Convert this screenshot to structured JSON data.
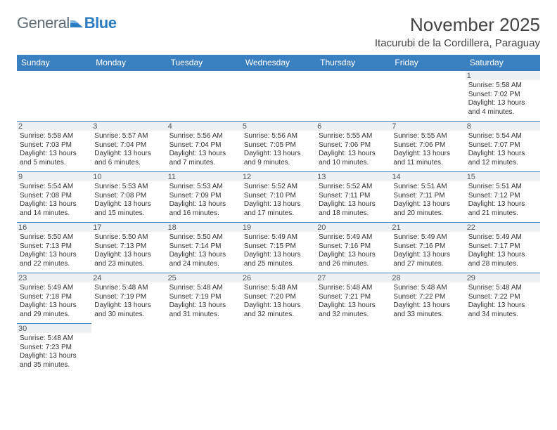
{
  "brand": {
    "part1": "General",
    "part2": "Blue"
  },
  "title": "November 2025",
  "location": "Itacurubi de la Cordillera, Paraguay",
  "colors": {
    "header_bg": "#3a7fbf",
    "header_fg": "#ffffff",
    "rule": "#3a7fbf",
    "daynum_bg": "#eef1f3"
  },
  "daysOfWeek": [
    "Sunday",
    "Monday",
    "Tuesday",
    "Wednesday",
    "Thursday",
    "Friday",
    "Saturday"
  ],
  "weeks": [
    [
      {
        "empty": true
      },
      {
        "empty": true
      },
      {
        "empty": true
      },
      {
        "empty": true
      },
      {
        "empty": true
      },
      {
        "empty": true
      },
      {
        "day": 1,
        "sunrise": "5:58 AM",
        "sunset": "7:02 PM",
        "daylight": "13 hours and 4 minutes."
      }
    ],
    [
      {
        "day": 2,
        "sunrise": "5:58 AM",
        "sunset": "7:03 PM",
        "daylight": "13 hours and 5 minutes."
      },
      {
        "day": 3,
        "sunrise": "5:57 AM",
        "sunset": "7:04 PM",
        "daylight": "13 hours and 6 minutes."
      },
      {
        "day": 4,
        "sunrise": "5:56 AM",
        "sunset": "7:04 PM",
        "daylight": "13 hours and 7 minutes."
      },
      {
        "day": 5,
        "sunrise": "5:56 AM",
        "sunset": "7:05 PM",
        "daylight": "13 hours and 9 minutes."
      },
      {
        "day": 6,
        "sunrise": "5:55 AM",
        "sunset": "7:06 PM",
        "daylight": "13 hours and 10 minutes."
      },
      {
        "day": 7,
        "sunrise": "5:55 AM",
        "sunset": "7:06 PM",
        "daylight": "13 hours and 11 minutes."
      },
      {
        "day": 8,
        "sunrise": "5:54 AM",
        "sunset": "7:07 PM",
        "daylight": "13 hours and 12 minutes."
      }
    ],
    [
      {
        "day": 9,
        "sunrise": "5:54 AM",
        "sunset": "7:08 PM",
        "daylight": "13 hours and 14 minutes."
      },
      {
        "day": 10,
        "sunrise": "5:53 AM",
        "sunset": "7:08 PM",
        "daylight": "13 hours and 15 minutes."
      },
      {
        "day": 11,
        "sunrise": "5:53 AM",
        "sunset": "7:09 PM",
        "daylight": "13 hours and 16 minutes."
      },
      {
        "day": 12,
        "sunrise": "5:52 AM",
        "sunset": "7:10 PM",
        "daylight": "13 hours and 17 minutes."
      },
      {
        "day": 13,
        "sunrise": "5:52 AM",
        "sunset": "7:11 PM",
        "daylight": "13 hours and 18 minutes."
      },
      {
        "day": 14,
        "sunrise": "5:51 AM",
        "sunset": "7:11 PM",
        "daylight": "13 hours and 20 minutes."
      },
      {
        "day": 15,
        "sunrise": "5:51 AM",
        "sunset": "7:12 PM",
        "daylight": "13 hours and 21 minutes."
      }
    ],
    [
      {
        "day": 16,
        "sunrise": "5:50 AM",
        "sunset": "7:13 PM",
        "daylight": "13 hours and 22 minutes."
      },
      {
        "day": 17,
        "sunrise": "5:50 AM",
        "sunset": "7:13 PM",
        "daylight": "13 hours and 23 minutes."
      },
      {
        "day": 18,
        "sunrise": "5:50 AM",
        "sunset": "7:14 PM",
        "daylight": "13 hours and 24 minutes."
      },
      {
        "day": 19,
        "sunrise": "5:49 AM",
        "sunset": "7:15 PM",
        "daylight": "13 hours and 25 minutes."
      },
      {
        "day": 20,
        "sunrise": "5:49 AM",
        "sunset": "7:16 PM",
        "daylight": "13 hours and 26 minutes."
      },
      {
        "day": 21,
        "sunrise": "5:49 AM",
        "sunset": "7:16 PM",
        "daylight": "13 hours and 27 minutes."
      },
      {
        "day": 22,
        "sunrise": "5:49 AM",
        "sunset": "7:17 PM",
        "daylight": "13 hours and 28 minutes."
      }
    ],
    [
      {
        "day": 23,
        "sunrise": "5:49 AM",
        "sunset": "7:18 PM",
        "daylight": "13 hours and 29 minutes."
      },
      {
        "day": 24,
        "sunrise": "5:48 AM",
        "sunset": "7:19 PM",
        "daylight": "13 hours and 30 minutes."
      },
      {
        "day": 25,
        "sunrise": "5:48 AM",
        "sunset": "7:19 PM",
        "daylight": "13 hours and 31 minutes."
      },
      {
        "day": 26,
        "sunrise": "5:48 AM",
        "sunset": "7:20 PM",
        "daylight": "13 hours and 32 minutes."
      },
      {
        "day": 27,
        "sunrise": "5:48 AM",
        "sunset": "7:21 PM",
        "daylight": "13 hours and 32 minutes."
      },
      {
        "day": 28,
        "sunrise": "5:48 AM",
        "sunset": "7:22 PM",
        "daylight": "13 hours and 33 minutes."
      },
      {
        "day": 29,
        "sunrise": "5:48 AM",
        "sunset": "7:22 PM",
        "daylight": "13 hours and 34 minutes."
      }
    ],
    [
      {
        "day": 30,
        "sunrise": "5:48 AM",
        "sunset": "7:23 PM",
        "daylight": "13 hours and 35 minutes."
      },
      {
        "empty": true,
        "noborder": true
      },
      {
        "empty": true,
        "noborder": true
      },
      {
        "empty": true,
        "noborder": true
      },
      {
        "empty": true,
        "noborder": true
      },
      {
        "empty": true,
        "noborder": true
      },
      {
        "empty": true,
        "noborder": true
      }
    ]
  ],
  "labels": {
    "sunrise": "Sunrise: ",
    "sunset": "Sunset: ",
    "daylight": "Daylight: "
  }
}
